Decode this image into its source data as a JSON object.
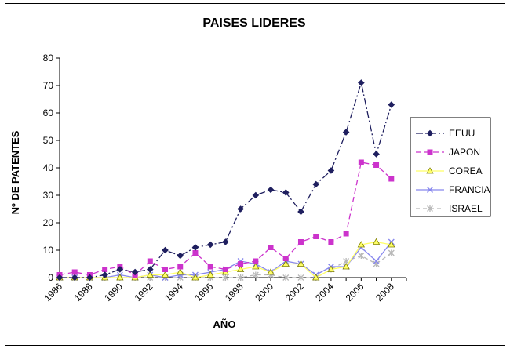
{
  "chart_data": {
    "type": "line",
    "title": "PAISES LIDERES",
    "xlabel": "AÑO",
    "ylabel": "Nº DE PATENTES",
    "ylim": [
      0,
      80
    ],
    "xlim": [
      1986,
      2009
    ],
    "y_ticks": [
      0,
      10,
      20,
      30,
      40,
      50,
      60,
      70,
      80
    ],
    "x_ticks": [
      1986,
      1988,
      1990,
      1992,
      1994,
      1996,
      1998,
      2000,
      2002,
      2004,
      2006,
      2008
    ],
    "x": [
      1986,
      1987,
      1988,
      1989,
      1990,
      1991,
      1992,
      1993,
      1994,
      1995,
      1996,
      1997,
      1998,
      1999,
      2000,
      2001,
      2002,
      2003,
      2004,
      2005,
      2006,
      2007,
      2008
    ],
    "legend_position": "right",
    "grid": false,
    "series": [
      {
        "name": "EEUU",
        "color": "#1f1f5f",
        "marker": "diamond",
        "dash": "9,3,2,3",
        "values": [
          0,
          0,
          0,
          1,
          3,
          2,
          3,
          10,
          8,
          11,
          12,
          13,
          25,
          30,
          32,
          31,
          24,
          34,
          39,
          53,
          71,
          45,
          63
        ]
      },
      {
        "name": "JAPON",
        "color": "#cc33cc",
        "marker": "square",
        "dash": "7,4",
        "values": [
          1,
          2,
          1,
          3,
          4,
          1,
          6,
          3,
          4,
          9,
          4,
          3,
          5,
          6,
          11,
          7,
          13,
          15,
          13,
          16,
          42,
          41,
          36
        ]
      },
      {
        "name": "COREA",
        "color": "#ffff66",
        "marker": "triangle",
        "dash": "",
        "values": [
          0,
          0,
          0,
          0,
          0,
          0,
          1,
          1,
          2,
          0,
          1,
          2,
          3,
          4,
          2,
          5,
          5,
          0,
          3,
          4,
          12,
          13,
          12
        ]
      },
      {
        "name": "FRANCIA",
        "color": "#8888ee",
        "marker": "x",
        "dash": "",
        "values": [
          0,
          0,
          0,
          0,
          1,
          0,
          1,
          0,
          1,
          1,
          2,
          3,
          6,
          5,
          2,
          6,
          5,
          1,
          4,
          4,
          11,
          6,
          13
        ]
      },
      {
        "name": "ISRAEL",
        "color": "#b8b8b8",
        "marker": "star",
        "dash": "5,4",
        "values": [
          0,
          0,
          0,
          0,
          0,
          0,
          0,
          0,
          0,
          0,
          0,
          0,
          0,
          1,
          1,
          0,
          0,
          0,
          3,
          6,
          8,
          5,
          9
        ]
      }
    ]
  }
}
